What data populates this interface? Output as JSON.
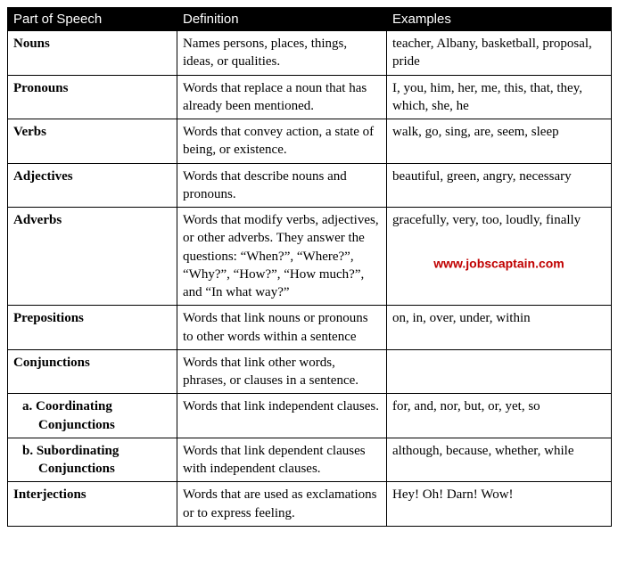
{
  "table": {
    "header_bg": "#000000",
    "header_fg": "#ffffff",
    "columns": [
      "Part of Speech",
      "Definition",
      "Examples"
    ],
    "watermark": {
      "text": "www.jobscaptain.com",
      "color": "#c00000"
    },
    "rows": [
      {
        "pos": "Nouns",
        "def": "Names persons, places, things, ideas, or qualities.",
        "ex": "teacher, Albany, basketball, proposal, pride"
      },
      {
        "pos": "Pronouns",
        "def": "Words that replace a noun that has already been mentioned.",
        "ex": "I, you, him, her, me, this, that, they, which, she, he"
      },
      {
        "pos": "Verbs",
        "def": "Words that convey action, a state of being, or existence.",
        "ex": "walk, go, sing, are, seem, sleep"
      },
      {
        "pos": "Adjectives",
        "def": "Words that describe nouns and pronouns.",
        "ex": "beautiful, green, angry, necessary"
      },
      {
        "pos": "Adverbs",
        "def": "Words that modify verbs, adjectives, or other adverbs. They answer the questions: “When?”, “Where?”, “Why?”, “How?”, “How much?”, and “In what way?”",
        "ex": "gracefully, very,  too, loudly, finally",
        "watermark": true
      },
      {
        "pos": "Prepositions",
        "def": "Words that link nouns or pronouns to other words within a sentence",
        "ex": "on, in, over, under, within"
      },
      {
        "pos": "Conjunctions",
        "def": "Words that link other words, phrases, or clauses in a sentence.",
        "ex": ""
      },
      {
        "pos": "a.  Coordinating Conjunctions",
        "sub": true,
        "def": "Words that link independent clauses.",
        "ex": "for, and, nor, but, or, yet, so"
      },
      {
        "pos": "b.  Subordinating Conjunctions",
        "sub": true,
        "def": "Words that link dependent clauses with independent clauses.",
        "ex": "although, because, whether, while"
      },
      {
        "pos": "Interjections",
        "def": "Words that are used as exclamations or to express feeling.",
        "ex": "Hey! Oh! Darn! Wow!"
      }
    ]
  }
}
